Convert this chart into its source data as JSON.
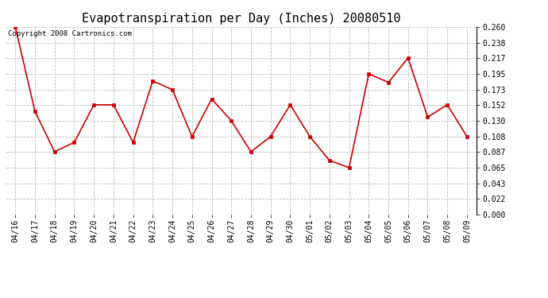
{
  "title": "Evapotranspiration per Day (Inches) 20080510",
  "copyright_text": "Copyright 2008 Cartronics.com",
  "line_color": "#cc0000",
  "marker_color": "#cc0000",
  "background_color": "#ffffff",
  "grid_color": "#bbbbbb",
  "dates": [
    "04/16",
    "04/17",
    "04/18",
    "04/19",
    "04/20",
    "04/21",
    "04/22",
    "04/23",
    "04/24",
    "04/25",
    "04/26",
    "04/27",
    "04/28",
    "04/29",
    "04/30",
    "05/01",
    "05/02",
    "05/03",
    "05/04",
    "05/05",
    "05/06",
    "05/07",
    "05/08",
    "05/09"
  ],
  "values": [
    0.26,
    0.143,
    0.087,
    0.1,
    0.152,
    0.152,
    0.1,
    0.185,
    0.173,
    0.108,
    0.16,
    0.13,
    0.087,
    0.108,
    0.152,
    0.108,
    0.075,
    0.065,
    0.195,
    0.183,
    0.217,
    0.135,
    0.152,
    0.108
  ],
  "yticks": [
    0.0,
    0.022,
    0.043,
    0.065,
    0.087,
    0.108,
    0.13,
    0.152,
    0.173,
    0.195,
    0.217,
    0.238,
    0.26
  ],
  "ylim": [
    0.0,
    0.26
  ],
  "title_fontsize": 11,
  "tick_fontsize": 7,
  "copyright_fontsize": 6.5
}
